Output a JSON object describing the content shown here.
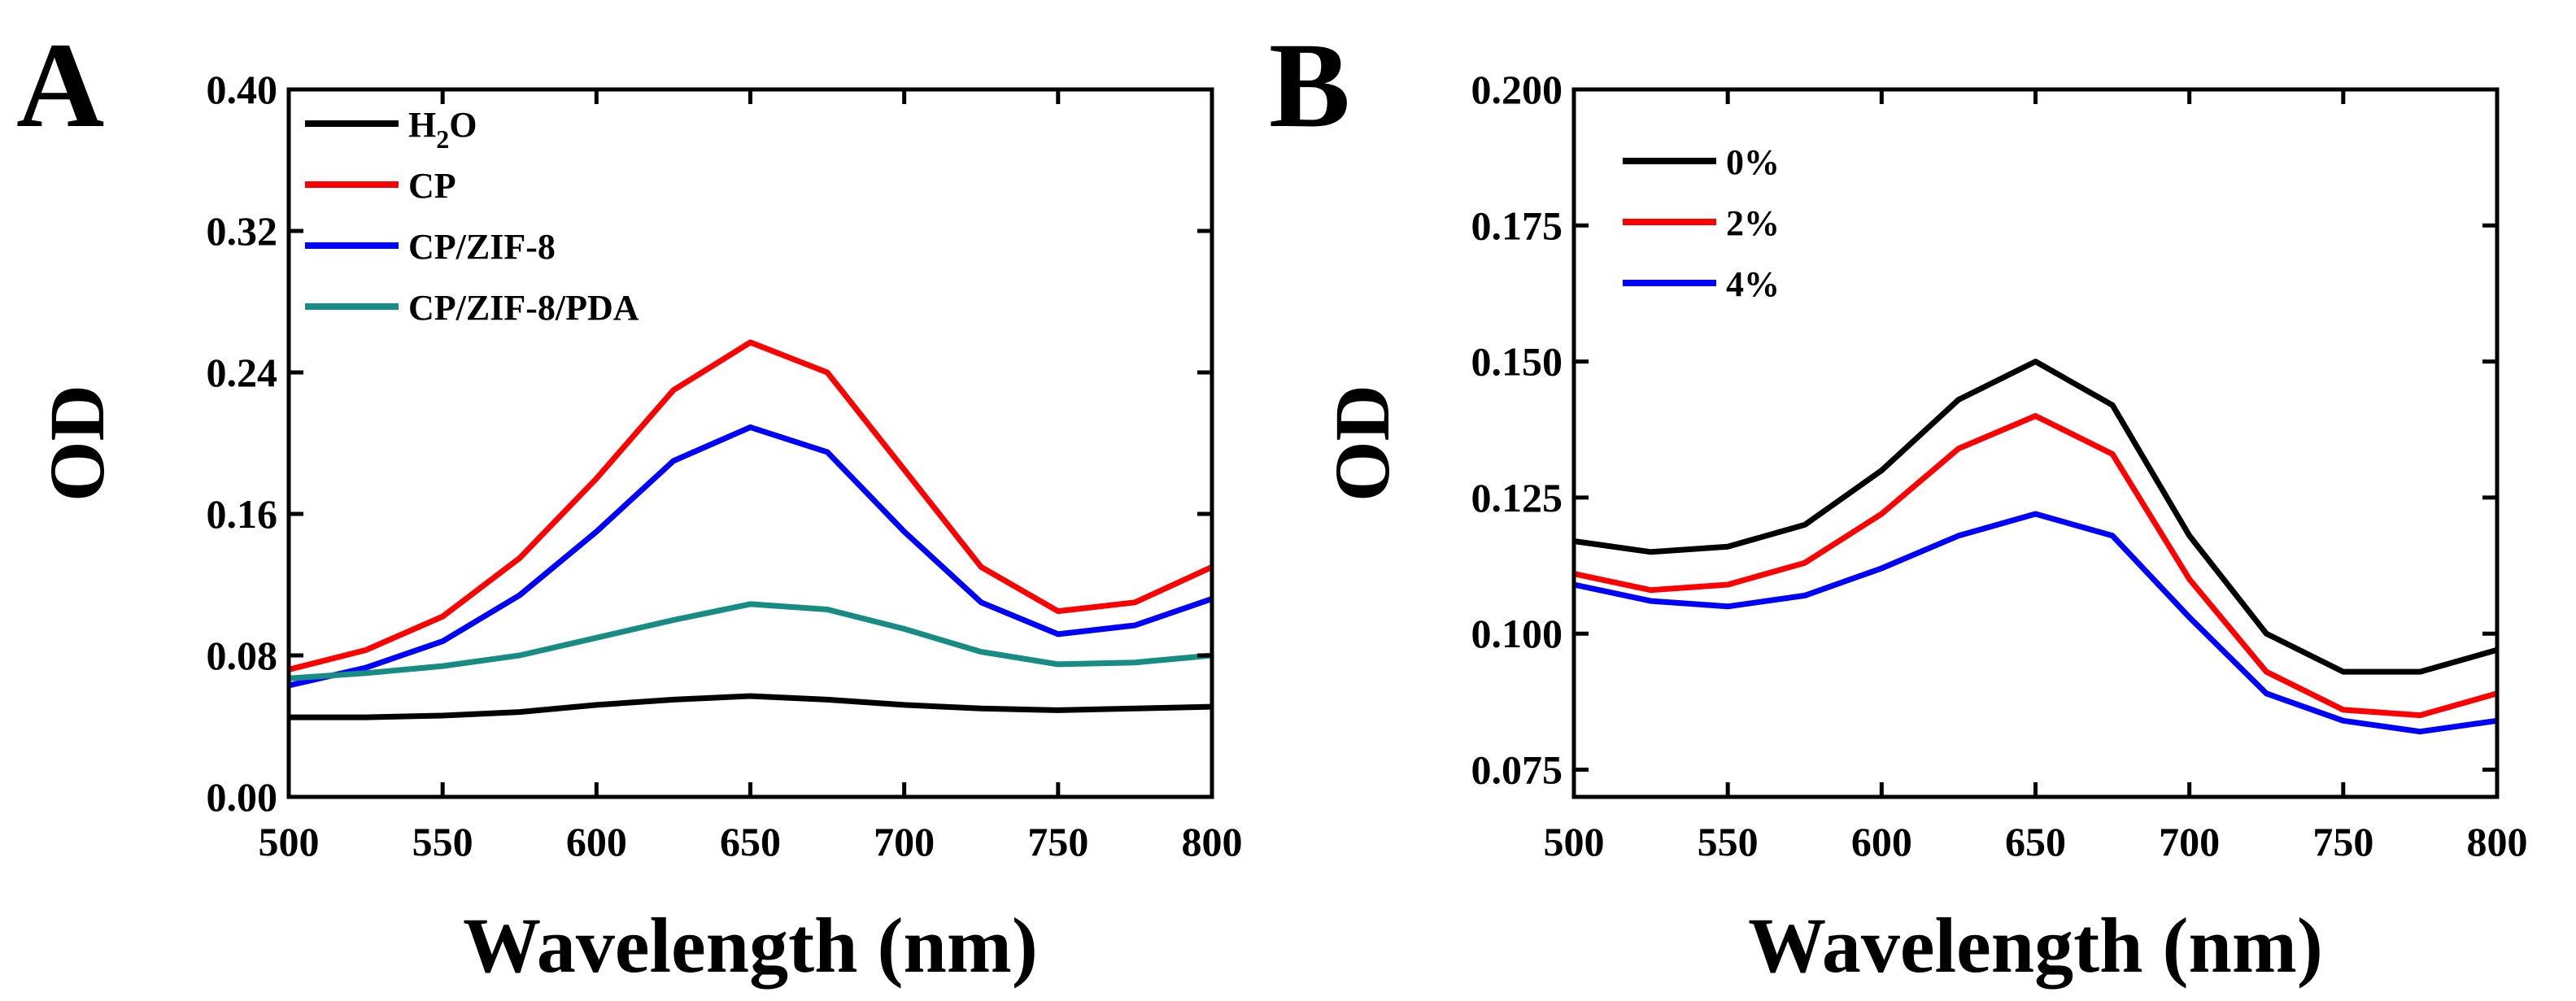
{
  "chart_data": [
    {
      "panel": "A",
      "type": "line",
      "xlabel": "Wavelength (nm)",
      "ylabel": "OD",
      "xlim": [
        500,
        800
      ],
      "ylim": [
        0.0,
        0.4
      ],
      "xticks": [
        500,
        550,
        600,
        650,
        700,
        750,
        800
      ],
      "yticks": [
        0.0,
        0.08,
        0.16,
        0.24,
        0.32,
        0.4
      ],
      "ytick_labels": [
        "0.00",
        "0.08",
        "0.16",
        "0.24",
        "0.32",
        "0.40"
      ],
      "legend_position": "top-left",
      "series": [
        {
          "name": "H2O",
          "label_main": "H",
          "label_sub": "2",
          "label_tail": "O",
          "color": "#000000",
          "x": [
            500,
            525,
            550,
            575,
            600,
            625,
            650,
            675,
            700,
            725,
            750,
            775,
            800
          ],
          "y": [
            0.045,
            0.045,
            0.046,
            0.048,
            0.052,
            0.055,
            0.057,
            0.055,
            0.052,
            0.05,
            0.049,
            0.05,
            0.051
          ]
        },
        {
          "name": "CP",
          "label_main": "CP",
          "color": "#ff0000",
          "x": [
            500,
            525,
            550,
            575,
            600,
            625,
            650,
            675,
            700,
            725,
            750,
            775,
            800
          ],
          "y": [
            0.072,
            0.083,
            0.102,
            0.135,
            0.18,
            0.23,
            0.257,
            0.24,
            0.185,
            0.13,
            0.105,
            0.11,
            0.13
          ]
        },
        {
          "name": "CP/ZIF-8",
          "label_main": "CP/ZIF-8",
          "color": "#0000ff",
          "x": [
            500,
            525,
            550,
            575,
            600,
            625,
            650,
            675,
            700,
            725,
            750,
            775,
            800
          ],
          "y": [
            0.063,
            0.073,
            0.088,
            0.114,
            0.15,
            0.19,
            0.209,
            0.195,
            0.15,
            0.11,
            0.092,
            0.097,
            0.112
          ]
        },
        {
          "name": "CP/ZIF-8/PDA",
          "label_main": "CP/ZIF-8/PDA",
          "color": "#178c82",
          "x": [
            500,
            525,
            550,
            575,
            600,
            625,
            650,
            675,
            700,
            725,
            750,
            775,
            800
          ],
          "y": [
            0.067,
            0.07,
            0.074,
            0.08,
            0.09,
            0.1,
            0.109,
            0.106,
            0.095,
            0.082,
            0.075,
            0.076,
            0.08
          ]
        }
      ]
    },
    {
      "panel": "B",
      "type": "line",
      "xlabel": "Wavelength (nm)",
      "ylabel": "OD",
      "xlim": [
        500,
        800
      ],
      "ylim": [
        0.07,
        0.2
      ],
      "xticks": [
        500,
        550,
        600,
        650,
        700,
        750,
        800
      ],
      "yticks": [
        0.075,
        0.1,
        0.125,
        0.15,
        0.175,
        0.2
      ],
      "ytick_labels": [
        "0.075",
        "0.100",
        "0.125",
        "0.150",
        "0.175",
        "0.200"
      ],
      "legend_position": "top-left",
      "series": [
        {
          "name": "0%",
          "label_main": "0%",
          "color": "#000000",
          "x": [
            500,
            525,
            550,
            575,
            600,
            625,
            650,
            675,
            700,
            725,
            750,
            775,
            800
          ],
          "y": [
            0.117,
            0.115,
            0.116,
            0.12,
            0.13,
            0.143,
            0.15,
            0.142,
            0.118,
            0.1,
            0.093,
            0.093,
            0.097
          ]
        },
        {
          "name": "2%",
          "label_main": "2%",
          "color": "#ff0000",
          "x": [
            500,
            525,
            550,
            575,
            600,
            625,
            650,
            675,
            700,
            725,
            750,
            775,
            800
          ],
          "y": [
            0.111,
            0.108,
            0.109,
            0.113,
            0.122,
            0.134,
            0.14,
            0.133,
            0.11,
            0.093,
            0.086,
            0.085,
            0.089
          ]
        },
        {
          "name": "4%",
          "label_main": "4%",
          "color": "#0000ff",
          "x": [
            500,
            525,
            550,
            575,
            600,
            625,
            650,
            675,
            700,
            725,
            750,
            775,
            800
          ],
          "y": [
            0.109,
            0.106,
            0.105,
            0.107,
            0.112,
            0.118,
            0.122,
            0.118,
            0.103,
            0.089,
            0.084,
            0.082,
            0.084
          ]
        }
      ]
    }
  ]
}
